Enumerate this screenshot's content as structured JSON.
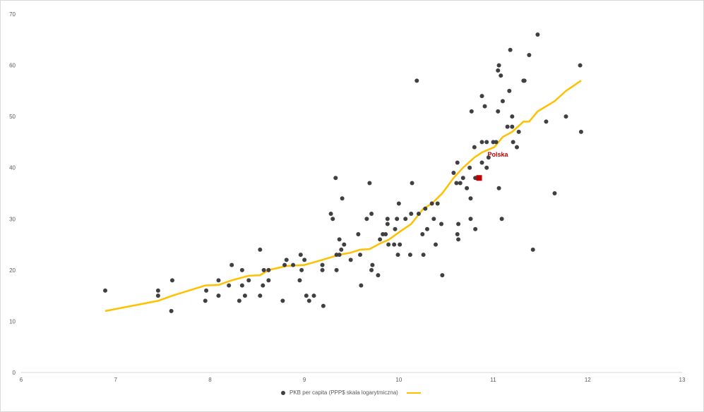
{
  "chart_data": {
    "type": "scatter",
    "title": "",
    "xlabel": "",
    "ylabel": "",
    "xlim": [
      6,
      13
    ],
    "ylim": [
      0,
      70
    ],
    "x_ticks": [
      "6",
      "7",
      "8",
      "9",
      "10",
      "11",
      "12",
      "13"
    ],
    "y_ticks": [
      "0",
      "10",
      "20",
      "30",
      "40",
      "50",
      "60",
      "70"
    ],
    "grid": false,
    "legend_position": "bottom",
    "colors": {
      "points": "#404040",
      "trend": "#FFC000",
      "highlight": "#C00000"
    },
    "series": [
      {
        "name": "PKB per capita (PPP$ skala logarytmiczna)",
        "type": "scatter",
        "points": [
          [
            6.89,
            16
          ],
          [
            7.45,
            16
          ],
          [
            7.45,
            15
          ],
          [
            7.6,
            18
          ],
          [
            7.59,
            12
          ],
          [
            7.95,
            14
          ],
          [
            7.96,
            16
          ],
          [
            8.09,
            18
          ],
          [
            8.09,
            15
          ],
          [
            8.2,
            17
          ],
          [
            8.23,
            21
          ],
          [
            8.31,
            14
          ],
          [
            8.34,
            17
          ],
          [
            8.34,
            20
          ],
          [
            8.37,
            15
          ],
          [
            8.41,
            18
          ],
          [
            8.53,
            24
          ],
          [
            8.53,
            15
          ],
          [
            8.56,
            17
          ],
          [
            8.57,
            20
          ],
          [
            8.62,
            20
          ],
          [
            8.62,
            18
          ],
          [
            8.77,
            14
          ],
          [
            8.79,
            21
          ],
          [
            8.81,
            22
          ],
          [
            8.88,
            21
          ],
          [
            8.95,
            18
          ],
          [
            8.97,
            20
          ],
          [
            8.96,
            23
          ],
          [
            9.0,
            22
          ],
          [
            9.02,
            15
          ],
          [
            9.05,
            14
          ],
          [
            9.1,
            15
          ],
          [
            9.19,
            21
          ],
          [
            9.19,
            20
          ],
          [
            9.2,
            13
          ],
          [
            9.28,
            31
          ],
          [
            9.3,
            30
          ],
          [
            9.33,
            38
          ],
          [
            9.34,
            20
          ],
          [
            9.34,
            23
          ],
          [
            9.37,
            26
          ],
          [
            9.37,
            23
          ],
          [
            9.39,
            24
          ],
          [
            9.4,
            34
          ],
          [
            9.42,
            25
          ],
          [
            9.49,
            22
          ],
          [
            9.57,
            27
          ],
          [
            9.59,
            23
          ],
          [
            9.6,
            17
          ],
          [
            9.66,
            30
          ],
          [
            9.69,
            37
          ],
          [
            9.71,
            31
          ],
          [
            9.71,
            20
          ],
          [
            9.72,
            21
          ],
          [
            9.78,
            19
          ],
          [
            9.8,
            26
          ],
          [
            9.83,
            27
          ],
          [
            9.86,
            27
          ],
          [
            9.88,
            29
          ],
          [
            9.88,
            30
          ],
          [
            9.89,
            25
          ],
          [
            9.95,
            25
          ],
          [
            9.96,
            28
          ],
          [
            9.98,
            30
          ],
          [
            9.99,
            23
          ],
          [
            10.0,
            33
          ],
          [
            10.01,
            25
          ],
          [
            10.07,
            30
          ],
          [
            10.12,
            23
          ],
          [
            10.13,
            31
          ],
          [
            10.14,
            37
          ],
          [
            10.19,
            57
          ],
          [
            10.21,
            31
          ],
          [
            10.25,
            27
          ],
          [
            10.26,
            23
          ],
          [
            10.28,
            32
          ],
          [
            10.3,
            28
          ],
          [
            10.35,
            33
          ],
          [
            10.37,
            30
          ],
          [
            10.39,
            25
          ],
          [
            10.41,
            33
          ],
          [
            10.45,
            29
          ],
          [
            10.46,
            19
          ],
          [
            10.58,
            39
          ],
          [
            10.61,
            37
          ],
          [
            10.62,
            41
          ],
          [
            10.62,
            27
          ],
          [
            10.63,
            29
          ],
          [
            10.63,
            26
          ],
          [
            10.65,
            37
          ],
          [
            10.68,
            38
          ],
          [
            10.72,
            36
          ],
          [
            10.75,
            40
          ],
          [
            10.76,
            34
          ],
          [
            10.76,
            30
          ],
          [
            10.77,
            51
          ],
          [
            10.8,
            44
          ],
          [
            10.81,
            28
          ],
          [
            10.81,
            38
          ],
          [
            10.88,
            54
          ],
          [
            10.88,
            45
          ],
          [
            10.88,
            41
          ],
          [
            10.91,
            52
          ],
          [
            10.93,
            45
          ],
          [
            10.93,
            40
          ],
          [
            10.95,
            42
          ],
          [
            11.0,
            45
          ],
          [
            11.03,
            45
          ],
          [
            11.05,
            59
          ],
          [
            11.06,
            60
          ],
          [
            11.05,
            51
          ],
          [
            11.06,
            36
          ],
          [
            11.08,
            58
          ],
          [
            11.09,
            30
          ],
          [
            11.1,
            53
          ],
          [
            11.15,
            48
          ],
          [
            11.17,
            55
          ],
          [
            11.18,
            63
          ],
          [
            11.2,
            48
          ],
          [
            11.2,
            50
          ],
          [
            11.21,
            45
          ],
          [
            11.25,
            44
          ],
          [
            11.27,
            47
          ],
          [
            11.32,
            57
          ],
          [
            11.33,
            57
          ],
          [
            11.38,
            62
          ],
          [
            11.42,
            24
          ],
          [
            11.47,
            66
          ],
          [
            11.56,
            49
          ],
          [
            11.65,
            35
          ],
          [
            11.77,
            50
          ],
          [
            11.92,
            60
          ],
          [
            11.93,
            47
          ]
        ]
      },
      {
        "type": "line",
        "points": [
          [
            6.89,
            12
          ],
          [
            7.45,
            14
          ],
          [
            7.6,
            15
          ],
          [
            7.95,
            17
          ],
          [
            8.09,
            17.1
          ],
          [
            8.23,
            18
          ],
          [
            8.41,
            18.9
          ],
          [
            8.53,
            19
          ],
          [
            8.62,
            20
          ],
          [
            8.81,
            20.8
          ],
          [
            9.0,
            21
          ],
          [
            9.19,
            22
          ],
          [
            9.37,
            23
          ],
          [
            9.49,
            23.4
          ],
          [
            9.59,
            24
          ],
          [
            9.69,
            24.1
          ],
          [
            9.8,
            25.2
          ],
          [
            9.89,
            25.9
          ],
          [
            10.01,
            27.5
          ],
          [
            10.13,
            29
          ],
          [
            10.26,
            32
          ],
          [
            10.35,
            33
          ],
          [
            10.46,
            35
          ],
          [
            10.58,
            38
          ],
          [
            10.68,
            40
          ],
          [
            10.8,
            42
          ],
          [
            10.88,
            43
          ],
          [
            11.01,
            44
          ],
          [
            11.1,
            46
          ],
          [
            11.2,
            47
          ],
          [
            11.32,
            49
          ],
          [
            11.38,
            49
          ],
          [
            11.47,
            51
          ],
          [
            11.65,
            53
          ],
          [
            11.77,
            55
          ],
          [
            11.93,
            57
          ]
        ]
      }
    ],
    "highlight": {
      "label": "Polska",
      "point": [
        10.85,
        38
      ]
    }
  }
}
